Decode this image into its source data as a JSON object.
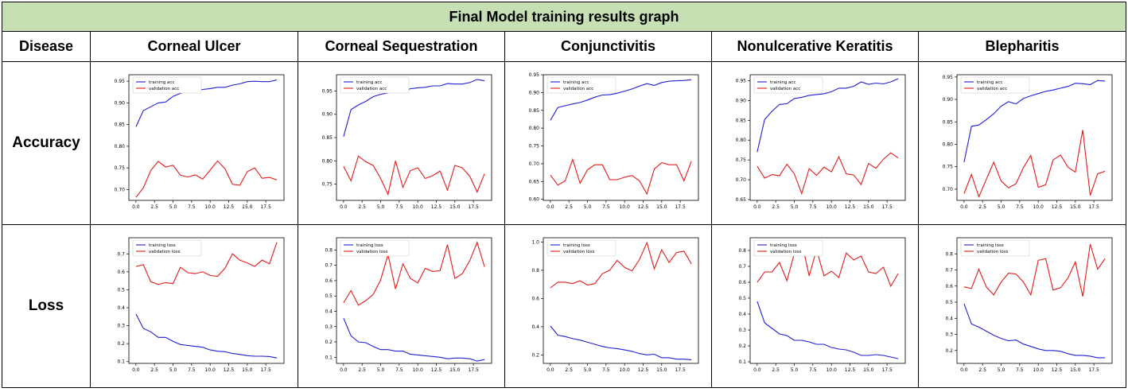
{
  "title": "Final Model training results graph",
  "header": {
    "disease_label": "Disease",
    "columns": [
      "Corneal Ulcer",
      "Corneal Sequestration",
      "Conjunctivitis",
      "Nonulcerative Keratitis",
      "Blepharitis"
    ]
  },
  "rows": {
    "accuracy_label": "Accuracy",
    "loss_label": "Loss"
  },
  "colors": {
    "train": "#1f1fd6",
    "validation": "#e31a1a",
    "title_bg": "#c6e0b4"
  },
  "chart_data": [
    {
      "type": "line",
      "disease": "Corneal Ulcer",
      "metric": "accuracy",
      "x": [
        0,
        1,
        2,
        3,
        4,
        5,
        6,
        7,
        8,
        9,
        10,
        11,
        12,
        13,
        14,
        15,
        16,
        17,
        18,
        19
      ],
      "xticks": [
        "0.0",
        "2.5",
        "5.0",
        "7.5",
        "10.0",
        "12.5",
        "15.0",
        "17.5"
      ],
      "yticks": [
        "0.70",
        "0.75",
        "0.80",
        "0.85",
        "0.90",
        "0.95"
      ],
      "ylim": [
        0.675,
        0.965
      ],
      "series": [
        {
          "name": "training acc",
          "color": "blue",
          "values": [
            0.845,
            0.882,
            0.891,
            0.9,
            0.902,
            0.915,
            0.922,
            0.927,
            0.928,
            0.931,
            0.933,
            0.936,
            0.936,
            0.941,
            0.944,
            0.949,
            0.95,
            0.949,
            0.949,
            0.953
          ]
        },
        {
          "name": "validation acc",
          "color": "red",
          "values": [
            0.682,
            0.704,
            0.744,
            0.765,
            0.752,
            0.756,
            0.733,
            0.729,
            0.734,
            0.724,
            0.745,
            0.766,
            0.748,
            0.712,
            0.71,
            0.741,
            0.75,
            0.726,
            0.728,
            0.722
          ]
        }
      ]
    },
    {
      "type": "line",
      "disease": "Corneal Sequestration",
      "metric": "accuracy",
      "x": [
        0,
        1,
        2,
        3,
        4,
        5,
        6,
        7,
        8,
        9,
        10,
        11,
        12,
        13,
        14,
        15,
        16,
        17,
        18,
        19
      ],
      "xticks": [
        "0.0",
        "2.5",
        "5.0",
        "7.5",
        "10.0",
        "12.5",
        "15.0",
        "17.5"
      ],
      "yticks": [
        "0.75",
        "0.80",
        "0.85",
        "0.90",
        "0.95"
      ],
      "ylim": [
        0.715,
        0.985
      ],
      "series": [
        {
          "name": "training acc",
          "color": "blue",
          "values": [
            0.852,
            0.91,
            0.92,
            0.928,
            0.938,
            0.943,
            0.946,
            0.95,
            0.948,
            0.955,
            0.957,
            0.958,
            0.961,
            0.961,
            0.966,
            0.965,
            0.965,
            0.968,
            0.975,
            0.972
          ]
        },
        {
          "name": "validation acc",
          "color": "red",
          "values": [
            0.788,
            0.757,
            0.81,
            0.798,
            0.79,
            0.762,
            0.728,
            0.8,
            0.743,
            0.779,
            0.785,
            0.762,
            0.768,
            0.778,
            0.737,
            0.79,
            0.785,
            0.767,
            0.733,
            0.772
          ]
        }
      ]
    },
    {
      "type": "line",
      "disease": "Conjunctivitis",
      "metric": "accuracy",
      "x": [
        0,
        1,
        2,
        3,
        4,
        5,
        6,
        7,
        8,
        9,
        10,
        11,
        12,
        13,
        14,
        15,
        16,
        17,
        18,
        19
      ],
      "xticks": [
        "0.0",
        "2.5",
        "5.0",
        "7.5",
        "10.0",
        "12.5",
        "15.0",
        "17.5"
      ],
      "yticks": [
        "0.60",
        "0.65",
        "0.70",
        "0.75",
        "0.80",
        "0.85",
        "0.90",
        "0.95"
      ],
      "ylim": [
        0.597,
        0.95
      ],
      "series": [
        {
          "name": "training acc",
          "color": "blue",
          "values": [
            0.822,
            0.858,
            0.863,
            0.868,
            0.872,
            0.879,
            0.887,
            0.893,
            0.894,
            0.898,
            0.904,
            0.91,
            0.918,
            0.925,
            0.92,
            0.928,
            0.932,
            0.933,
            0.934,
            0.936
          ]
        },
        {
          "name": "validation acc",
          "color": "red",
          "values": [
            0.668,
            0.64,
            0.652,
            0.712,
            0.645,
            0.683,
            0.697,
            0.697,
            0.655,
            0.655,
            0.662,
            0.667,
            0.652,
            0.615,
            0.685,
            0.703,
            0.697,
            0.697,
            0.652,
            0.707
          ]
        }
      ]
    },
    {
      "type": "line",
      "disease": "Nonulcerative Keratitis",
      "metric": "accuracy",
      "x": [
        0,
        1,
        2,
        3,
        4,
        5,
        6,
        7,
        8,
        9,
        10,
        11,
        12,
        13,
        14,
        15,
        16,
        17,
        18,
        19
      ],
      "xticks": [
        "0.0",
        "2.5",
        "5.0",
        "7.5",
        "10.0",
        "12.5",
        "15.0",
        "17.5"
      ],
      "yticks": [
        "0.65",
        "0.70",
        "0.75",
        "0.80",
        "0.85",
        "0.90",
        "0.95"
      ],
      "ylim": [
        0.648,
        0.965
      ],
      "series": [
        {
          "name": "training acc",
          "color": "blue",
          "values": [
            0.77,
            0.852,
            0.873,
            0.89,
            0.892,
            0.905,
            0.908,
            0.913,
            0.915,
            0.917,
            0.922,
            0.931,
            0.931,
            0.936,
            0.947,
            0.941,
            0.944,
            0.942,
            0.947,
            0.955
          ]
        },
        {
          "name": "validation acc",
          "color": "red",
          "values": [
            0.734,
            0.704,
            0.713,
            0.71,
            0.739,
            0.715,
            0.665,
            0.728,
            0.711,
            0.732,
            0.72,
            0.758,
            0.715,
            0.712,
            0.688,
            0.741,
            0.729,
            0.752,
            0.768,
            0.755
          ]
        }
      ]
    },
    {
      "type": "line",
      "disease": "Blepharitis",
      "metric": "accuracy",
      "x": [
        0,
        1,
        2,
        3,
        4,
        5,
        6,
        7,
        8,
        9,
        10,
        11,
        12,
        13,
        14,
        15,
        16,
        17,
        18,
        19
      ],
      "xticks": [
        "0.0",
        "2.5",
        "5.0",
        "7.5",
        "10.0",
        "12.5",
        "15.0",
        "17.5"
      ],
      "yticks": [
        "0.70",
        "0.75",
        "0.80",
        "0.85",
        "0.90",
        "0.95"
      ],
      "ylim": [
        0.675,
        0.955
      ],
      "series": [
        {
          "name": "training acc",
          "color": "blue",
          "values": [
            0.76,
            0.84,
            0.843,
            0.855,
            0.868,
            0.885,
            0.895,
            0.89,
            0.902,
            0.908,
            0.913,
            0.918,
            0.921,
            0.925,
            0.929,
            0.936,
            0.935,
            0.933,
            0.942,
            0.941
          ]
        },
        {
          "name": "validation acc",
          "color": "red",
          "values": [
            0.69,
            0.733,
            0.683,
            0.722,
            0.76,
            0.718,
            0.703,
            0.712,
            0.748,
            0.775,
            0.704,
            0.71,
            0.765,
            0.776,
            0.749,
            0.738,
            0.832,
            0.686,
            0.734,
            0.74
          ]
        }
      ]
    },
    {
      "type": "line",
      "disease": "Corneal Ulcer",
      "metric": "loss",
      "x": [
        0,
        1,
        2,
        3,
        4,
        5,
        6,
        7,
        8,
        9,
        10,
        11,
        12,
        13,
        14,
        15,
        16,
        17,
        18,
        19
      ],
      "xticks": [
        "0.0",
        "2.5",
        "5.0",
        "7.5",
        "10.0",
        "12.5",
        "15.0",
        "17.5"
      ],
      "yticks": [
        "0.1",
        "0.2",
        "0.3",
        "0.4",
        "0.5",
        "0.6",
        "0.7"
      ],
      "ylim": [
        0.09,
        0.79
      ],
      "series": [
        {
          "name": "training loss",
          "color": "blue",
          "values": [
            0.365,
            0.285,
            0.266,
            0.235,
            0.235,
            0.213,
            0.195,
            0.19,
            0.185,
            0.18,
            0.165,
            0.158,
            0.155,
            0.145,
            0.14,
            0.133,
            0.13,
            0.13,
            0.128,
            0.12
          ]
        },
        {
          "name": "validation loss",
          "color": "red",
          "values": [
            0.63,
            0.64,
            0.545,
            0.53,
            0.54,
            0.535,
            0.625,
            0.595,
            0.59,
            0.6,
            0.58,
            0.575,
            0.62,
            0.7,
            0.665,
            0.65,
            0.63,
            0.665,
            0.645,
            0.765
          ]
        }
      ]
    },
    {
      "type": "line",
      "disease": "Corneal Sequestration",
      "metric": "loss",
      "x": [
        0,
        1,
        2,
        3,
        4,
        5,
        6,
        7,
        8,
        9,
        10,
        11,
        12,
        13,
        14,
        15,
        16,
        17,
        18,
        19
      ],
      "xticks": [
        "0.0",
        "2.5",
        "5.0",
        "7.5",
        "10.0",
        "12.5",
        "15.0",
        "17.5"
      ],
      "yticks": [
        "0.1",
        "0.2",
        "0.3",
        "0.4",
        "0.5",
        "0.6",
        "0.7",
        "0.8"
      ],
      "ylim": [
        0.06,
        0.88
      ],
      "series": [
        {
          "name": "training loss",
          "color": "blue",
          "values": [
            0.355,
            0.24,
            0.2,
            0.195,
            0.17,
            0.15,
            0.15,
            0.14,
            0.14,
            0.12,
            0.115,
            0.11,
            0.105,
            0.1,
            0.09,
            0.095,
            0.095,
            0.09,
            0.075,
            0.085
          ]
        },
        {
          "name": "validation loss",
          "color": "red",
          "values": [
            0.455,
            0.535,
            0.44,
            0.47,
            0.51,
            0.605,
            0.77,
            0.545,
            0.71,
            0.615,
            0.585,
            0.68,
            0.66,
            0.665,
            0.835,
            0.615,
            0.645,
            0.73,
            0.85,
            0.69
          ]
        }
      ]
    },
    {
      "type": "line",
      "disease": "Conjunctivitis",
      "metric": "loss",
      "x": [
        0,
        1,
        2,
        3,
        4,
        5,
        6,
        7,
        8,
        9,
        10,
        11,
        12,
        13,
        14,
        15,
        16,
        17,
        18,
        19
      ],
      "xticks": [
        "0.0",
        "2.5",
        "5.0",
        "7.5",
        "10.0",
        "12.5",
        "15.0",
        "17.5"
      ],
      "yticks": [
        "0.2",
        "0.4",
        "0.6",
        "0.8",
        "1.0"
      ],
      "ylim": [
        0.14,
        1.03
      ],
      "series": [
        {
          "name": "training loss",
          "color": "blue",
          "values": [
            0.405,
            0.34,
            0.33,
            0.315,
            0.305,
            0.29,
            0.275,
            0.26,
            0.25,
            0.245,
            0.235,
            0.225,
            0.21,
            0.2,
            0.205,
            0.18,
            0.18,
            0.17,
            0.17,
            0.165
          ]
        },
        {
          "name": "validation loss",
          "color": "red",
          "values": [
            0.675,
            0.715,
            0.715,
            0.705,
            0.725,
            0.695,
            0.705,
            0.775,
            0.8,
            0.87,
            0.82,
            0.795,
            0.875,
            0.995,
            0.81,
            0.945,
            0.855,
            0.925,
            0.935,
            0.845
          ]
        }
      ]
    },
    {
      "type": "line",
      "disease": "Nonulcerative Keratitis",
      "metric": "loss",
      "x": [
        0,
        1,
        2,
        3,
        4,
        5,
        6,
        7,
        8,
        9,
        10,
        11,
        12,
        13,
        14,
        15,
        16,
        17,
        18,
        19
      ],
      "xticks": [
        "0.0",
        "2.5",
        "5.0",
        "7.5",
        "10.0",
        "12.5",
        "15.0",
        "17.5"
      ],
      "yticks": [
        "0.1",
        "0.2",
        "0.3",
        "0.4",
        "0.5",
        "0.6",
        "0.7",
        "0.8"
      ],
      "ylim": [
        0.09,
        0.88
      ],
      "series": [
        {
          "name": "training loss",
          "color": "blue",
          "values": [
            0.48,
            0.345,
            0.31,
            0.275,
            0.265,
            0.235,
            0.235,
            0.225,
            0.21,
            0.21,
            0.19,
            0.18,
            0.175,
            0.16,
            0.14,
            0.14,
            0.145,
            0.14,
            0.13,
            0.12
          ]
        },
        {
          "name": "validation loss",
          "color": "red",
          "values": [
            0.6,
            0.665,
            0.665,
            0.725,
            0.61,
            0.78,
            0.855,
            0.64,
            0.805,
            0.64,
            0.67,
            0.63,
            0.785,
            0.74,
            0.765,
            0.665,
            0.655,
            0.695,
            0.575,
            0.655
          ]
        }
      ]
    },
    {
      "type": "line",
      "disease": "Blepharitis",
      "metric": "loss",
      "x": [
        0,
        1,
        2,
        3,
        4,
        5,
        6,
        7,
        8,
        9,
        10,
        11,
        12,
        13,
        14,
        15,
        16,
        17,
        18,
        19
      ],
      "xticks": [
        "0.0",
        "2.5",
        "5.0",
        "7.5",
        "10.0",
        "12.5",
        "15.0",
        "17.5"
      ],
      "yticks": [
        "0.2",
        "0.3",
        "0.4",
        "0.5",
        "0.6",
        "0.7",
        "0.8"
      ],
      "ylim": [
        0.12,
        0.9
      ],
      "series": [
        {
          "name": "training loss",
          "color": "blue",
          "values": [
            0.49,
            0.365,
            0.345,
            0.32,
            0.295,
            0.275,
            0.26,
            0.265,
            0.24,
            0.225,
            0.21,
            0.2,
            0.2,
            0.195,
            0.18,
            0.17,
            0.17,
            0.165,
            0.155,
            0.155
          ]
        },
        {
          "name": "validation loss",
          "color": "red",
          "values": [
            0.595,
            0.585,
            0.705,
            0.595,
            0.545,
            0.625,
            0.68,
            0.675,
            0.625,
            0.545,
            0.76,
            0.77,
            0.575,
            0.59,
            0.65,
            0.75,
            0.535,
            0.86,
            0.705,
            0.77
          ]
        }
      ]
    }
  ]
}
